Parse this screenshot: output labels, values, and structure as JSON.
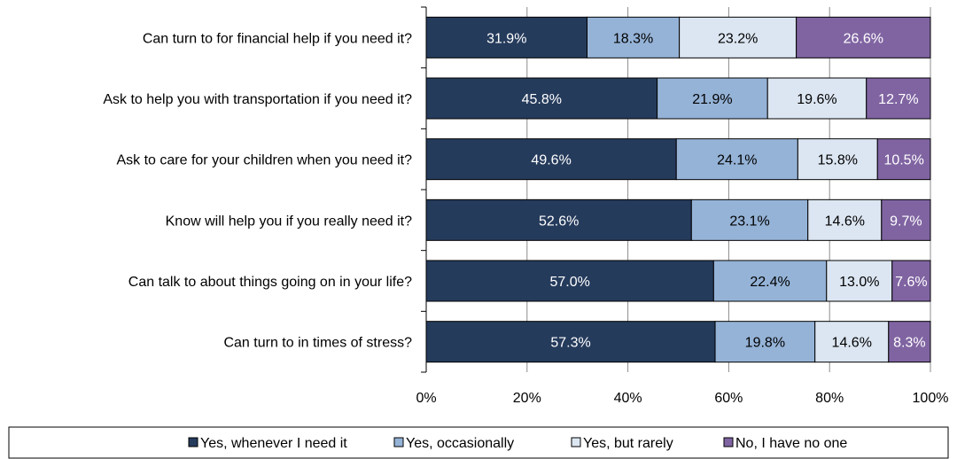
{
  "chart_data": {
    "type": "bar",
    "orientation": "horizontal",
    "stacked": true,
    "categories": [
      "Can turn to for financial help if you need it?",
      "Ask to help you with transportation if you need it?",
      "Ask to care for your children when you need it?",
      "Know will help you if you really need it?",
      "Can talk to about things going on in your life?",
      "Can turn to in times of stress?"
    ],
    "series": [
      {
        "name": "Yes, whenever I need it",
        "color": "#253b5c",
        "label_color": "#ffffff",
        "values": [
          31.9,
          45.8,
          49.6,
          52.6,
          57.0,
          57.3
        ]
      },
      {
        "name": "Yes, occasionally",
        "color": "#95b3d7",
        "label_color": "#000000",
        "values": [
          18.3,
          21.9,
          24.1,
          23.1,
          22.4,
          19.8
        ]
      },
      {
        "name": "Yes, but rarely",
        "color": "#dce6f2",
        "label_color": "#000000",
        "values": [
          23.2,
          19.6,
          15.8,
          14.6,
          13.0,
          14.6
        ]
      },
      {
        "name": "No, I have no one",
        "color": "#8064a2",
        "label_color": "#ffffff",
        "values": [
          26.6,
          12.7,
          10.5,
          9.7,
          7.6,
          8.3
        ]
      }
    ],
    "x_ticks": [
      "0%",
      "20%",
      "40%",
      "60%",
      "80%",
      "100%"
    ],
    "xlim": [
      0,
      100
    ],
    "grid": true,
    "legend_position": "bottom"
  }
}
